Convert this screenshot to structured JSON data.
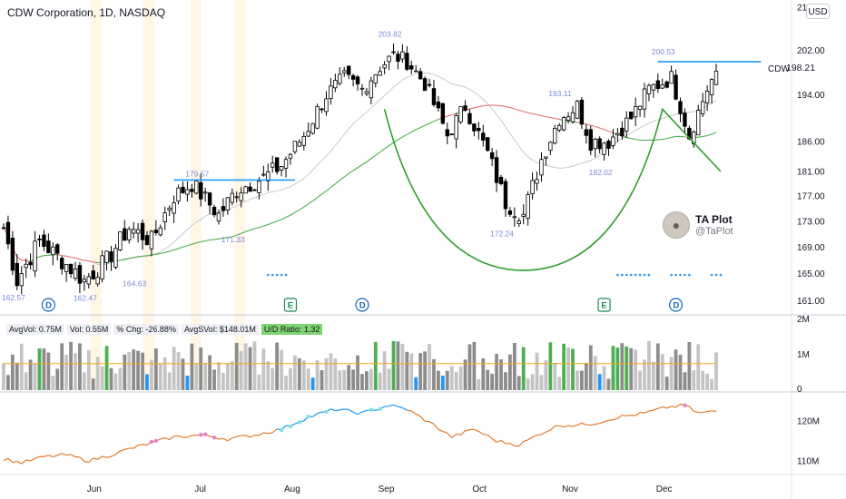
{
  "header": {
    "title": "CDW Corporation, 1D, NASDAQ",
    "currency_button": "USD",
    "symbol_label": "CDW",
    "last_price": "198.21"
  },
  "stats_bar": {
    "avgvol": "AvgVol: 0.75M",
    "vol": "Vol: 0.55M",
    "chg": "% Chg: -26.88%",
    "avgdollarvol": "AvgSVol: $148.01M",
    "ud_ratio": "U/D Ratio: 1.32"
  },
  "brand": {
    "name": "TA Plot",
    "handle": "@TaPlot"
  },
  "colors": {
    "up": "#ffffff",
    "down": "#000000",
    "wick": "#000000",
    "ma_fast": "#4caf50",
    "ma_slow": "#e57373",
    "ma_thin": "#c9c9c9",
    "cup": "#2e9e2e",
    "annotation_text": "#7a8ad6",
    "resistance_lines": "#2196f3",
    "rs_line": "#e07b2e",
    "rs_line_new_high": "#2196f3",
    "volume_up_strong": "#4caf50",
    "volume_down_strong": "#2196f3",
    "volume_gray": "#8c8c8c",
    "volume_light": "#c4c4c4",
    "volume_avg_line": "#f5a623",
    "event_d": "#1565c0",
    "event_e": "#1b8a5a"
  },
  "chart_data": [
    {
      "type": "candlestick",
      "title": "CDW Corporation, 1D, NASDAQ",
      "x_labels": [
        "Jun",
        "Jul",
        "Aug",
        "Sep",
        "Oct",
        "Nov",
        "Dec"
      ],
      "y_ticks": [
        "210.00",
        "202.00",
        "194.00",
        "186.00",
        "181.00",
        "177.00",
        "173.00",
        "169.00",
        "165.00",
        "161.00"
      ],
      "ylim": [
        159.5,
        210
      ],
      "y_scale": "log",
      "anchors": [
        {
          "i": 0,
          "v": 172
        },
        {
          "i": 3,
          "v": 164
        },
        {
          "i": 8,
          "v": 170
        },
        {
          "i": 13,
          "v": 167
        },
        {
          "i": 18,
          "v": 164
        },
        {
          "i": 23,
          "v": 167
        },
        {
          "i": 28,
          "v": 172
        },
        {
          "i": 33,
          "v": 170
        },
        {
          "i": 38,
          "v": 177
        },
        {
          "i": 42,
          "v": 179
        },
        {
          "i": 48,
          "v": 174
        },
        {
          "i": 52,
          "v": 178
        },
        {
          "i": 58,
          "v": 180
        },
        {
          "i": 62,
          "v": 182
        },
        {
          "i": 67,
          "v": 187
        },
        {
          "i": 72,
          "v": 194
        },
        {
          "i": 76,
          "v": 197
        },
        {
          "i": 80,
          "v": 195
        },
        {
          "i": 84,
          "v": 199
        },
        {
          "i": 87,
          "v": 201
        },
        {
          "i": 90,
          "v": 200
        },
        {
          "i": 94,
          "v": 196
        },
        {
          "i": 99,
          "v": 187
        },
        {
          "i": 103,
          "v": 192
        },
        {
          "i": 108,
          "v": 184
        },
        {
          "i": 112,
          "v": 176
        },
        {
          "i": 116,
          "v": 174
        },
        {
          "i": 120,
          "v": 183
        },
        {
          "i": 124,
          "v": 190
        },
        {
          "i": 128,
          "v": 192
        },
        {
          "i": 131,
          "v": 186
        },
        {
          "i": 135,
          "v": 186
        },
        {
          "i": 140,
          "v": 190
        },
        {
          "i": 144,
          "v": 195
        },
        {
          "i": 149,
          "v": 197
        },
        {
          "i": 153,
          "v": 187
        },
        {
          "i": 157,
          "v": 195
        },
        {
          "i": 159,
          "v": 198.21
        }
      ],
      "annotations": [
        {
          "text": "162.57",
          "i": 2,
          "v": 162.57,
          "pos": "below"
        },
        {
          "text": "162.47",
          "i": 18,
          "v": 162.47,
          "pos": "below"
        },
        {
          "text": "164.63",
          "i": 29,
          "v": 164.63,
          "pos": "below"
        },
        {
          "text": "179.57",
          "i": 43,
          "v": 179.57,
          "pos": "above"
        },
        {
          "text": "171.33",
          "i": 51,
          "v": 171.33,
          "pos": "below"
        },
        {
          "text": "203.82",
          "i": 86,
          "v": 203.82,
          "pos": "above"
        },
        {
          "text": "172.24",
          "i": 111,
          "v": 172.24,
          "pos": "below"
        },
        {
          "text": "193.11",
          "i": 124,
          "v": 193.11,
          "pos": "above"
        },
        {
          "text": "182.02",
          "i": 133,
          "v": 182.02,
          "pos": "below"
        },
        {
          "text": "200.53",
          "i": 147,
          "v": 200.53,
          "pos": "above"
        }
      ],
      "resistance_lines": [
        {
          "from_i": 38,
          "to_i": 65,
          "v": 179.6
        },
        {
          "from_i": 146,
          "to_i": 169,
          "v": 199.9
        }
      ],
      "cup_pattern": {
        "left_rim": {
          "i": 85,
          "v": 191.5
        },
        "bottom": {
          "i": 116,
          "v": 165.5
        },
        "right_rim": {
          "i": 147,
          "v": 191.5
        },
        "handle_end": {
          "i": 160,
          "v": 181.0
        }
      },
      "event_markers": [
        {
          "label": "D",
          "i": 10
        },
        {
          "label": "E",
          "i": 64
        },
        {
          "label": "D",
          "i": 80
        },
        {
          "label": "E",
          "i": 134
        },
        {
          "label": "D",
          "i": 150
        }
      ]
    },
    {
      "type": "bar",
      "title": "Volume",
      "y_ticks": [
        "2M",
        "1M",
        "0"
      ],
      "ylim": [
        0,
        2000000
      ],
      "avg_volume": 750000
    },
    {
      "type": "line",
      "title": "Relative strength line",
      "y_ticks": [
        "120M",
        "110M"
      ],
      "ylim": [
        107000000,
        126000000
      ],
      "anchors": [
        {
          "i": 0,
          "v": 110.5
        },
        {
          "i": 4,
          "v": 109.5
        },
        {
          "i": 9,
          "v": 111
        },
        {
          "i": 14,
          "v": 111.5
        },
        {
          "i": 19,
          "v": 110
        },
        {
          "i": 24,
          "v": 111.5
        },
        {
          "i": 28,
          "v": 113
        },
        {
          "i": 33,
          "v": 114.5
        },
        {
          "i": 38,
          "v": 116
        },
        {
          "i": 44,
          "v": 116.5
        },
        {
          "i": 50,
          "v": 115.5
        },
        {
          "i": 56,
          "v": 116.5
        },
        {
          "i": 62,
          "v": 118
        },
        {
          "i": 68,
          "v": 121
        },
        {
          "i": 74,
          "v": 123
        },
        {
          "i": 80,
          "v": 122
        },
        {
          "i": 86,
          "v": 124
        },
        {
          "i": 90,
          "v": 123
        },
        {
          "i": 96,
          "v": 119
        },
        {
          "i": 100,
          "v": 116
        },
        {
          "i": 105,
          "v": 118
        },
        {
          "i": 110,
          "v": 115
        },
        {
          "i": 115,
          "v": 114
        },
        {
          "i": 120,
          "v": 117
        },
        {
          "i": 124,
          "v": 119
        },
        {
          "i": 128,
          "v": 119
        },
        {
          "i": 132,
          "v": 119.5
        },
        {
          "i": 137,
          "v": 121
        },
        {
          "i": 143,
          "v": 122
        },
        {
          "i": 148,
          "v": 123.5
        },
        {
          "i": 152,
          "v": 124
        },
        {
          "i": 155,
          "v": 122
        },
        {
          "i": 159,
          "v": 122.5
        }
      ],
      "new_high_segment": [
        62,
        90
      ]
    }
  ]
}
